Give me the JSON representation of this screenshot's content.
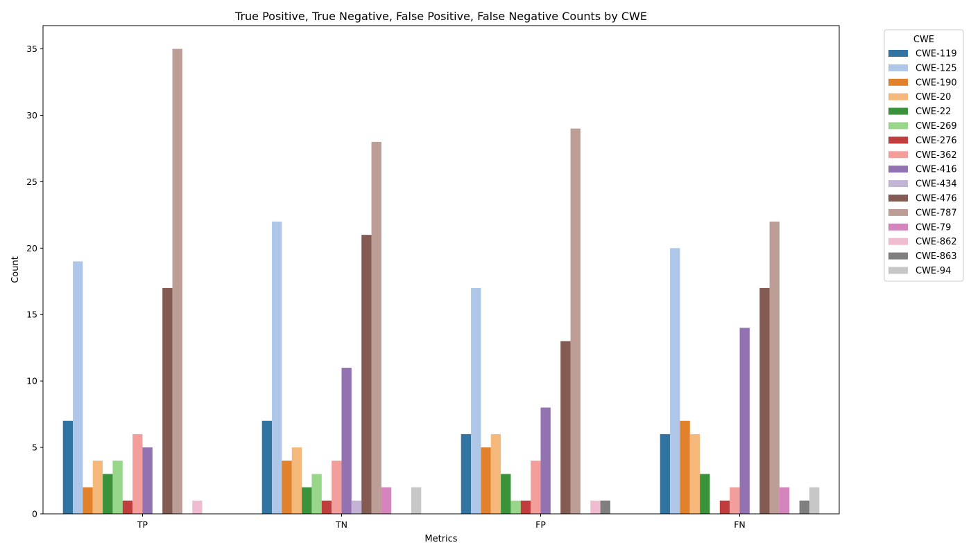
{
  "chart_data": {
    "type": "bar",
    "title": "True Positive, True Negative, False Positive, False Negative Counts by CWE",
    "xlabel": "Metrics",
    "ylabel": "Count",
    "ylim": [
      0,
      36.75
    ],
    "yticks": [
      0,
      5,
      10,
      15,
      20,
      25,
      30,
      35
    ],
    "categories": [
      "TP",
      "TN",
      "FP",
      "FN"
    ],
    "grid": false,
    "legend": {
      "title": "CWE",
      "placement": "outside-top-right"
    },
    "series": [
      {
        "name": "CWE-119",
        "color": "#3274a1",
        "values": [
          7,
          7,
          6,
          6
        ]
      },
      {
        "name": "CWE-125",
        "color": "#aec7e8",
        "values": [
          19,
          22,
          17,
          20
        ]
      },
      {
        "name": "CWE-190",
        "color": "#e1812c",
        "values": [
          2,
          4,
          5,
          7
        ]
      },
      {
        "name": "CWE-20",
        "color": "#f4b87b",
        "values": [
          4,
          5,
          6,
          6
        ]
      },
      {
        "name": "CWE-22",
        "color": "#3a923a",
        "values": [
          3,
          2,
          3,
          3
        ]
      },
      {
        "name": "CWE-269",
        "color": "#98d68a",
        "values": [
          4,
          3,
          1,
          0
        ]
      },
      {
        "name": "CWE-276",
        "color": "#c03d3e",
        "values": [
          1,
          1,
          1,
          1
        ]
      },
      {
        "name": "CWE-362",
        "color": "#f49e9c",
        "values": [
          6,
          4,
          4,
          2
        ]
      },
      {
        "name": "CWE-416",
        "color": "#9372b2",
        "values": [
          5,
          11,
          8,
          14
        ]
      },
      {
        "name": "CWE-434",
        "color": "#c3b3d5",
        "values": [
          0,
          1,
          0,
          0
        ]
      },
      {
        "name": "CWE-476",
        "color": "#845b53",
        "values": [
          17,
          21,
          13,
          17
        ]
      },
      {
        "name": "CWE-787",
        "color": "#bc9e97",
        "values": [
          35,
          28,
          29,
          22
        ]
      },
      {
        "name": "CWE-79",
        "color": "#d684bd",
        "values": [
          0,
          2,
          0,
          2
        ]
      },
      {
        "name": "CWE-862",
        "color": "#f0bcd1",
        "values": [
          1,
          0,
          1,
          0
        ]
      },
      {
        "name": "CWE-863",
        "color": "#7f7f7f",
        "values": [
          0,
          0,
          1,
          1
        ]
      },
      {
        "name": "CWE-94",
        "color": "#c7c7c7",
        "values": [
          0,
          2,
          0,
          2
        ]
      }
    ]
  }
}
